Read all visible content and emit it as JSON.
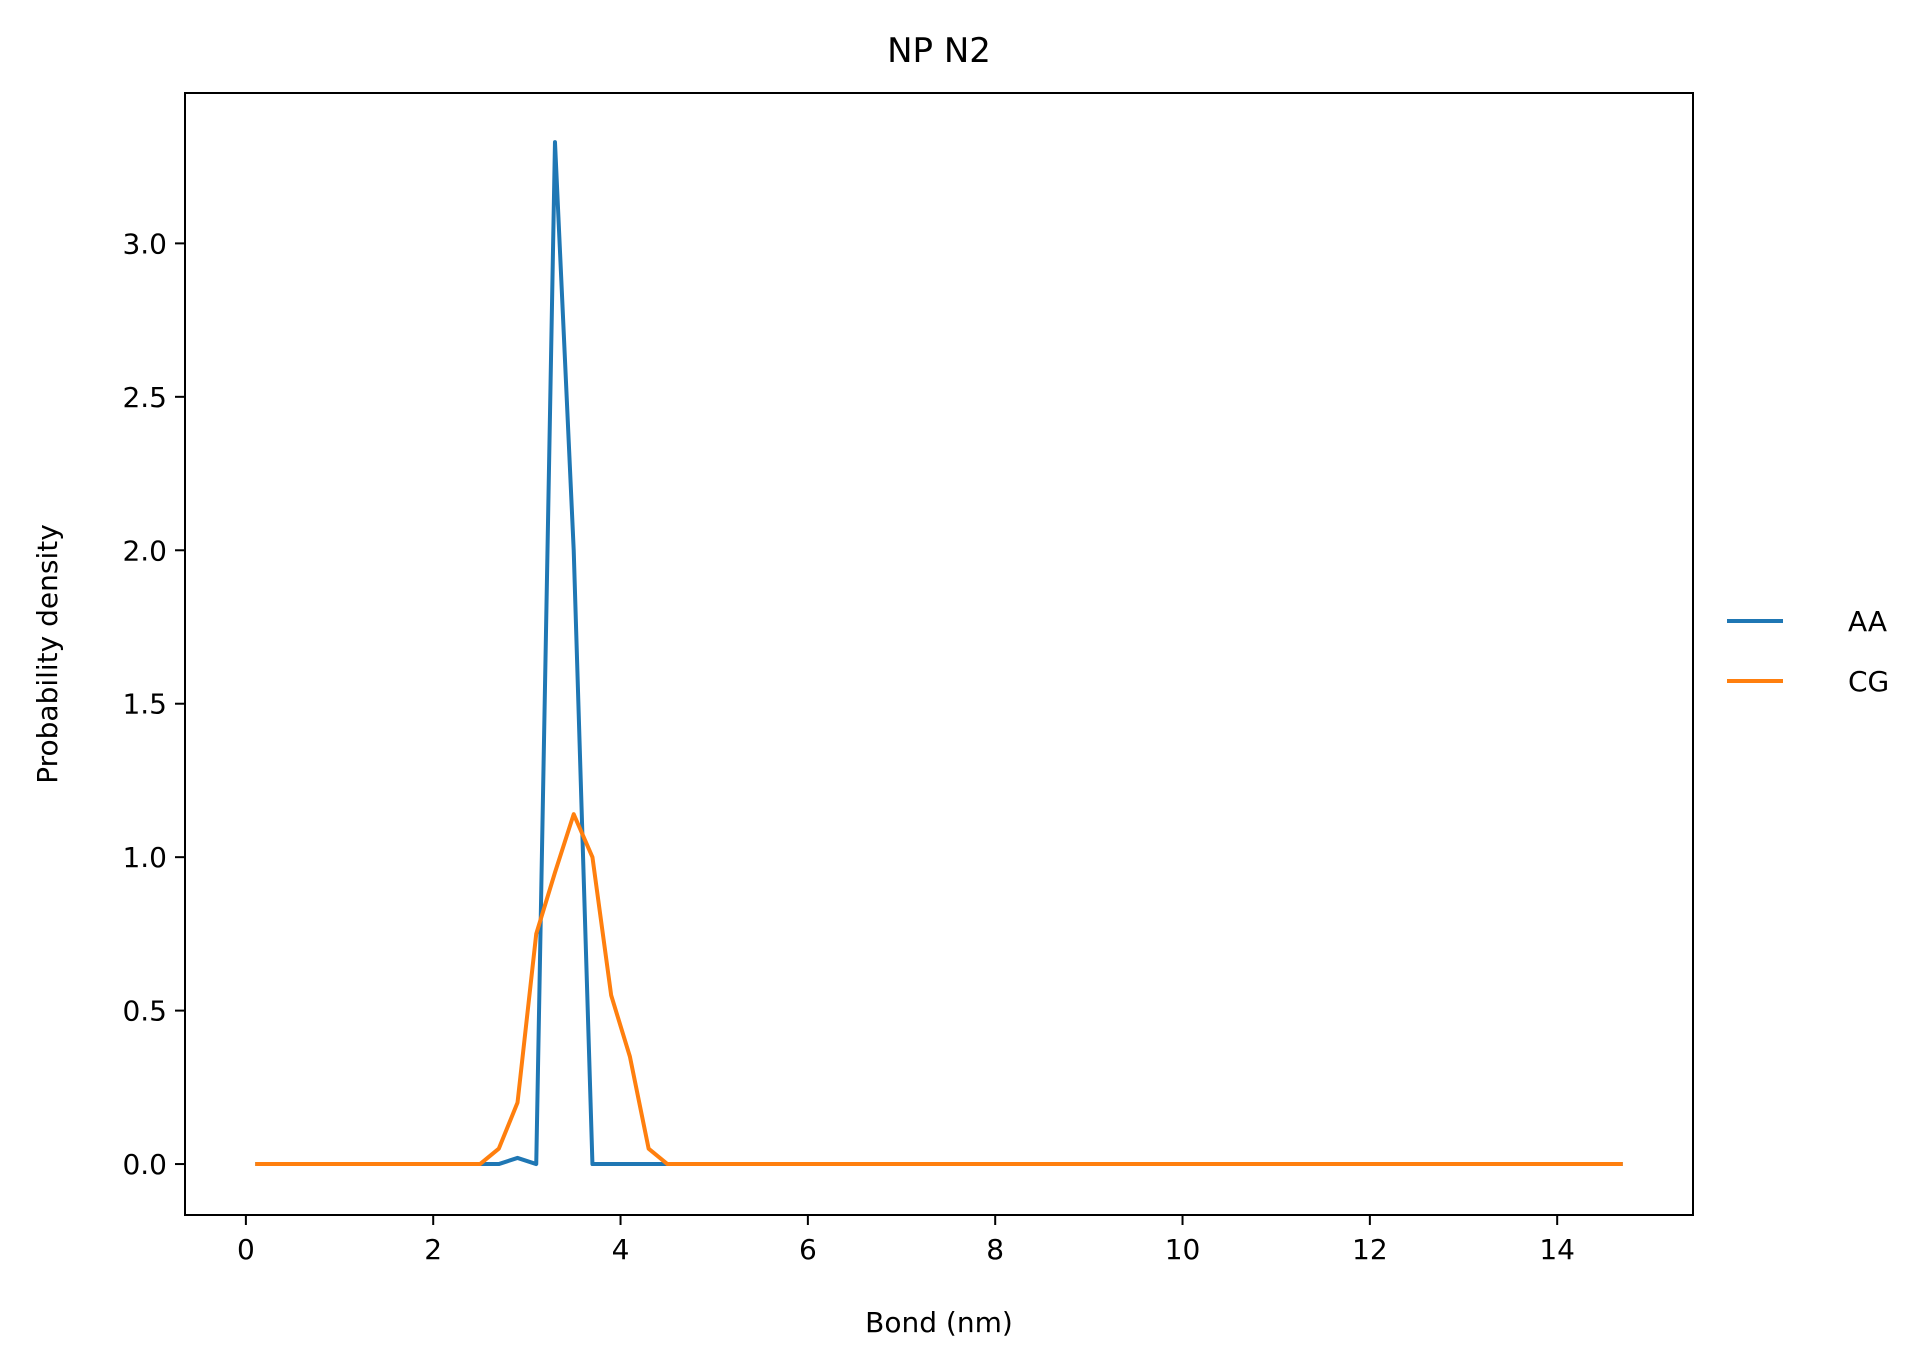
{
  "chart_data": {
    "type": "line",
    "title": "NP N2",
    "xlabel": "Bond (nm)",
    "ylabel": "Probability density",
    "xlim": [
      -0.65,
      15.45
    ],
    "ylim": [
      -0.166,
      3.49
    ],
    "xticks": [
      0,
      2,
      4,
      6,
      8,
      10,
      12,
      14
    ],
    "yticks": [
      0.0,
      0.5,
      1.0,
      1.5,
      2.0,
      2.5,
      3.0
    ],
    "ytick_labels": [
      "0.0",
      "0.5",
      "1.0",
      "1.5",
      "2.0",
      "2.5",
      "3.0"
    ],
    "grid": false,
    "legend_position": "right-outside",
    "series": [
      {
        "name": "AA",
        "color": "#1f77b4",
        "points": [
          [
            0.1,
            0
          ],
          [
            2.5,
            0
          ],
          [
            2.7,
            0
          ],
          [
            2.9,
            0.02
          ],
          [
            3.1,
            0
          ],
          [
            3.3,
            3.33
          ],
          [
            3.5,
            2.0
          ],
          [
            3.7,
            0
          ],
          [
            3.9,
            0
          ],
          [
            4.5,
            0
          ],
          [
            14.7,
            0
          ]
        ]
      },
      {
        "name": "CG",
        "color": "#ff7f0e",
        "points": [
          [
            0.1,
            0
          ],
          [
            2.5,
            0
          ],
          [
            2.7,
            0.05
          ],
          [
            2.9,
            0.2
          ],
          [
            3.1,
            0.75
          ],
          [
            3.3,
            0.95
          ],
          [
            3.5,
            1.14
          ],
          [
            3.7,
            1.0
          ],
          [
            3.9,
            0.55
          ],
          [
            4.1,
            0.35
          ],
          [
            4.3,
            0.05
          ],
          [
            4.5,
            0
          ],
          [
            14.7,
            0
          ]
        ]
      }
    ]
  }
}
